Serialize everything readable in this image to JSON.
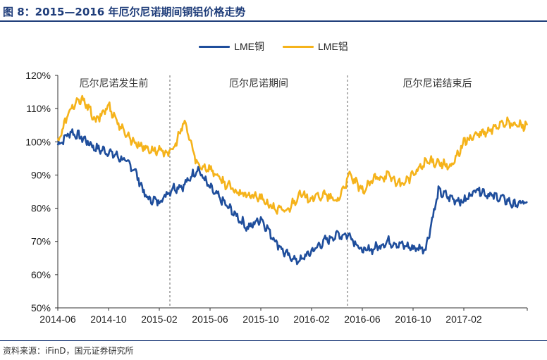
{
  "figure": {
    "title": "图 8：2015—2016 年厄尔尼诺期间铜铝价格走势",
    "source": "资料来源：iFinD，国元证券研究所"
  },
  "colors": {
    "copper": "#1f4e9c",
    "aluminum": "#f5b31b",
    "title": "#1f3d7a"
  },
  "chart_data": {
    "type": "line",
    "title": "",
    "xlabel": "",
    "ylabel": "",
    "ylim": [
      50,
      120
    ],
    "y_ticks": [
      50,
      60,
      70,
      80,
      90,
      100,
      110,
      120
    ],
    "y_tick_labels": [
      "50%",
      "60%",
      "70%",
      "80%",
      "90%",
      "100%",
      "110%",
      "120%"
    ],
    "x_range": [
      "2014-06",
      "2017-07"
    ],
    "x_tick_labels": [
      "2014-06",
      "2014-10",
      "2015-02",
      "2015-06",
      "2015-10",
      "2016-02",
      "2016-06",
      "2016-10",
      "2017-02"
    ],
    "grid": false,
    "legend_position": "top",
    "period_dividers": [
      "2015-03",
      "2016-05"
    ],
    "period_labels": [
      "厄尔尼诺发生前",
      "厄尔尼诺期间",
      "厄尔尼诺结束后"
    ],
    "series": [
      {
        "name": "LME铜",
        "x": [
          "2014-06",
          "2014-07",
          "2014-08",
          "2014-09",
          "2014-10",
          "2014-11",
          "2014-12",
          "2015-01",
          "2015-02",
          "2015-03",
          "2015-04",
          "2015-05",
          "2015-06",
          "2015-07",
          "2015-08",
          "2015-09",
          "2015-10",
          "2015-11",
          "2015-12",
          "2016-01",
          "2016-02",
          "2016-03",
          "2016-04",
          "2016-05",
          "2016-06",
          "2016-07",
          "2016-08",
          "2016-09",
          "2016-10",
          "2016-11",
          "2016-12",
          "2017-01",
          "2017-02",
          "2017-03",
          "2017-04",
          "2017-05",
          "2017-06",
          "2017-07"
        ],
        "values": [
          99,
          103,
          101,
          98,
          97,
          95,
          92,
          83,
          82,
          86,
          87,
          92,
          86,
          82,
          78,
          74,
          77,
          71,
          66,
          64,
          67,
          70,
          72,
          72,
          67,
          68,
          70,
          69,
          68,
          68,
          85,
          83,
          82,
          86,
          84,
          83,
          81,
          82
        ]
      },
      {
        "name": "LME铝",
        "x": [
          "2014-06",
          "2014-07",
          "2014-08",
          "2014-09",
          "2014-10",
          "2014-11",
          "2014-12",
          "2015-01",
          "2015-02",
          "2015-03",
          "2015-04",
          "2015-05",
          "2015-06",
          "2015-07",
          "2015-08",
          "2015-09",
          "2015-10",
          "2015-11",
          "2015-12",
          "2016-01",
          "2016-02",
          "2016-03",
          "2016-04",
          "2016-05",
          "2016-06",
          "2016-07",
          "2016-08",
          "2016-09",
          "2016-10",
          "2016-11",
          "2016-12",
          "2017-01",
          "2017-02",
          "2017-03",
          "2017-04",
          "2017-05",
          "2017-06",
          "2017-07"
        ],
        "values": [
          100,
          110,
          113,
          106,
          111,
          104,
          100,
          98,
          97,
          97,
          106,
          93,
          92,
          88,
          85,
          84,
          83,
          80,
          79,
          84,
          83,
          84,
          82,
          90,
          85,
          89,
          90,
          87,
          90,
          94,
          94,
          92,
          100,
          102,
          103,
          106,
          105,
          105
        ]
      }
    ]
  }
}
